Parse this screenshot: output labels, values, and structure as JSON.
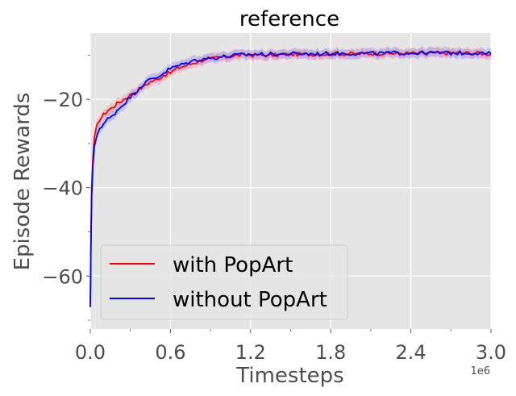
{
  "chart_data": {
    "type": "line",
    "title": "reference",
    "xlabel": "Timesteps",
    "ylabel": "Episode Rewards",
    "x_offset_label": "1e6",
    "xlim": [
      0,
      3000000
    ],
    "ylim": [
      -72,
      -5
    ],
    "xticks": [
      0,
      600000,
      1200000,
      1800000,
      2400000,
      3000000
    ],
    "xtick_labels": [
      "0.0",
      "0.6",
      "1.2",
      "1.8",
      "2.4",
      "3.0"
    ],
    "yticks": [
      -60,
      -40,
      -20
    ],
    "ytick_labels": [
      "−60",
      "−40",
      "−20"
    ],
    "grid": true,
    "legend_position": "lower-left",
    "series": [
      {
        "name": "with PopArt",
        "color": "#ff0000",
        "band_color": "#ff9999",
        "x": [
          0,
          5000,
          10000,
          20000,
          30000,
          50000,
          70000,
          100000,
          130000,
          160000,
          200000,
          250000,
          300000,
          350000,
          400000,
          450000,
          500000,
          550000,
          600000,
          650000,
          700000,
          750000,
          800000,
          850000,
          900000,
          950000,
          1000000,
          1100000,
          1200000,
          1300000,
          1400000,
          1500000,
          1600000,
          1700000,
          1800000,
          1900000,
          2000000,
          2100000,
          2200000,
          2300000,
          2400000,
          2500000,
          2600000,
          2700000,
          2800000,
          2900000,
          3000000
        ],
        "y": [
          -67,
          -52,
          -40,
          -33,
          -29,
          -26,
          -24.5,
          -23.5,
          -22.5,
          -22,
          -21,
          -20,
          -19,
          -18,
          -17,
          -16,
          -15.5,
          -14.5,
          -14,
          -13,
          -12.5,
          -12,
          -11.5,
          -11,
          -11,
          -10.5,
          -10.5,
          -10,
          -10,
          -10,
          -10,
          -9.8,
          -9.8,
          -9.8,
          -9.7,
          -9.7,
          -9.7,
          -9.6,
          -9.6,
          -9.6,
          -9.6,
          -9.6,
          -9.5,
          -9.5,
          -9.5,
          -9.5,
          -9.8
        ]
      },
      {
        "name": "without PopArt",
        "color": "#0000ff",
        "band_color": "#9999ff",
        "x": [
          0,
          5000,
          10000,
          20000,
          30000,
          50000,
          70000,
          100000,
          130000,
          160000,
          200000,
          250000,
          300000,
          350000,
          400000,
          450000,
          500000,
          550000,
          600000,
          650000,
          700000,
          750000,
          800000,
          850000,
          900000,
          950000,
          1000000,
          1100000,
          1200000,
          1300000,
          1400000,
          1500000,
          1600000,
          1700000,
          1800000,
          1900000,
          2000000,
          2100000,
          2200000,
          2300000,
          2400000,
          2500000,
          2600000,
          2700000,
          2800000,
          2900000,
          3000000
        ],
        "y": [
          -67,
          -53,
          -42,
          -35,
          -31,
          -28,
          -26.5,
          -25.5,
          -24.5,
          -24,
          -22.5,
          -21,
          -19.5,
          -18,
          -16.5,
          -15.5,
          -15,
          -14,
          -13,
          -12.5,
          -12,
          -11.5,
          -11,
          -10.8,
          -10.7,
          -10.5,
          -10.3,
          -10,
          -9.8,
          -9.8,
          -9.8,
          -9.7,
          -9.7,
          -9.7,
          -9.6,
          -9.6,
          -9.6,
          -9.6,
          -9.6,
          -9.5,
          -9.5,
          -9.5,
          -9.5,
          -9.5,
          -9.5,
          -9.5,
          -9.7
        ]
      }
    ]
  }
}
